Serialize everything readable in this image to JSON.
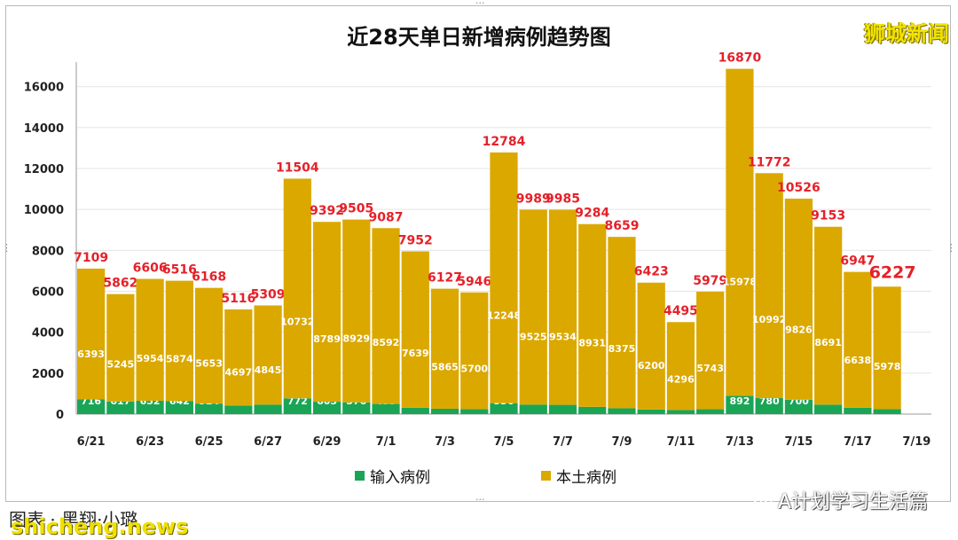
{
  "title": "近28天单日新增病例趋势图",
  "brand": "狮城新闻",
  "legend": {
    "imported": "输入病例",
    "local": "本土病例"
  },
  "colors": {
    "imported": "#1aa556",
    "local": "#dba800",
    "total_label": "#e5212a",
    "inner_label": "#ffffff"
  },
  "footer": {
    "credit": "图表 · 黑翔·小璐",
    "watermark": "shicheng.news",
    "wechat": "A计划学习生活篇"
  },
  "chart_data": {
    "type": "bar",
    "stacked": true,
    "title": "近28天单日新增病例趋势图",
    "categories": [
      "6/21",
      "6/22",
      "6/23",
      "6/24",
      "6/25",
      "6/26",
      "6/27",
      "6/28",
      "6/29",
      "6/30",
      "7/1",
      "7/2",
      "7/3",
      "7/4",
      "7/5",
      "7/6",
      "7/7",
      "7/8",
      "7/9",
      "7/10",
      "7/11",
      "7/12",
      "7/13",
      "7/14",
      "7/15",
      "7/16",
      "7/17",
      "7/18",
      "7/19"
    ],
    "x_tick_labels": [
      "6/21",
      "6/23",
      "6/25",
      "6/27",
      "6/29",
      "7/1",
      "7/3",
      "7/5",
      "7/7",
      "7/9",
      "7/11",
      "7/13",
      "7/15",
      "7/17",
      "7/19"
    ],
    "series": [
      {
        "name": "输入病例",
        "values": [
          716,
          617,
          652,
          642,
          514,
          419,
          464,
          772,
          603,
          576,
          495,
          313,
          262,
          246,
          536,
          464,
          451,
          353,
          284,
          223,
          199,
          236,
          892,
          780,
          700,
          462,
          309,
          249,
          null
        ]
      },
      {
        "name": "本土病例",
        "values": [
          6393,
          5245,
          5954,
          5874,
          5653,
          4697,
          4845,
          10732,
          8789,
          8929,
          8592,
          7639,
          5865,
          5700,
          12248,
          9525,
          9534,
          8931,
          8375,
          6200,
          4296,
          5743,
          15978,
          10992,
          9826,
          8691,
          6638,
          5978,
          null
        ]
      }
    ],
    "totals": [
      7109,
      5862,
      6606,
      6516,
      6168,
      5116,
      5309,
      11504,
      9392,
      9505,
      9087,
      7952,
      6127,
      5946,
      12784,
      9989,
      9985,
      9284,
      8659,
      6423,
      4495,
      5979,
      16870,
      11772,
      10526,
      9153,
      6947,
      6227,
      null
    ],
    "yticks": [
      0,
      2000,
      4000,
      6000,
      8000,
      10000,
      12000,
      14000,
      16000
    ],
    "ylim": [
      0,
      17200
    ],
    "legend_position": "bottom",
    "grid": true
  }
}
